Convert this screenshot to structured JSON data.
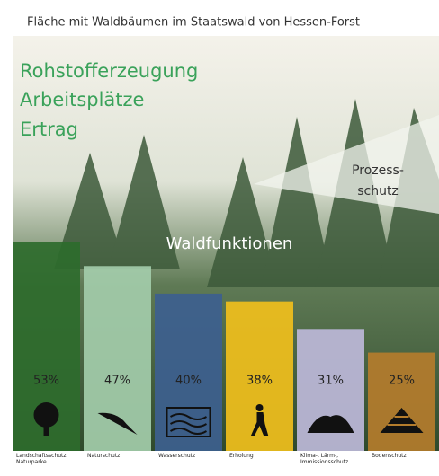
{
  "chart_data": {
    "type": "bar",
    "title": "Fläche mit Waldbäumen im Staatswald von Hessen-Forst",
    "header_lines": [
      "Rohstofferzeugung",
      "Arbeitsplätze",
      "Ertrag"
    ],
    "triangle_label": [
      "Prozess-",
      "schutz"
    ],
    "center_label": "Waldfunktionen",
    "categories": [
      "Landschaftsschutz Naturparke",
      "Naturschutz",
      "Wasserschutz",
      "Erholung",
      "Klima-, Lärm-, Immissionsschutz",
      "Bodenschutz"
    ],
    "values": [
      53,
      47,
      40,
      38,
      31,
      25
    ],
    "value_labels": [
      "53%",
      "47%",
      "40%",
      "38%",
      "31%",
      "25%"
    ],
    "colors": [
      "#2e6b2c",
      "#a3ccaa",
      "#3d5f8f",
      "#f0bf1c",
      "#bdb9d9",
      "#b47c2c"
    ]
  }
}
